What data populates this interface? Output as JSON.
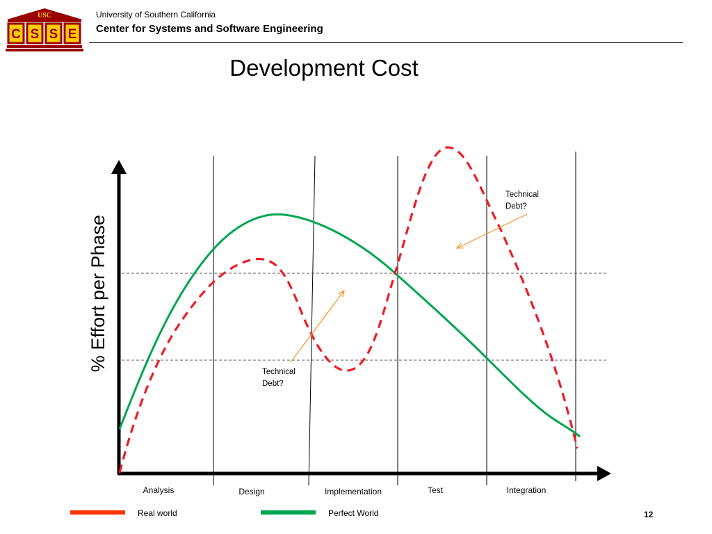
{
  "header": {
    "logo_top": "USC",
    "logo_letters": [
      "C",
      "S",
      "S",
      "E"
    ],
    "university": "University of Southern California",
    "center": "Center for Systems and Software Engineering"
  },
  "slide": {
    "title": "Development Cost",
    "y_axis_label": "% Effort per Phase",
    "page_number": "12"
  },
  "phases": [
    "Analysis",
    "Design",
    "Implementation",
    "Test",
    "Integration"
  ],
  "annotations": {
    "td_upper_line1": "Technical",
    "td_upper_line2": "Debt?",
    "td_lower_line1": "Technical",
    "td_lower_line2": "Debt?"
  },
  "legend": [
    {
      "label": "Real world",
      "color": "#ff3300"
    },
    {
      "label": "Perfect World",
      "color": "#00a550"
    }
  ],
  "colors": {
    "real_world_curve": "#ee1c25",
    "perfect_world_curve": "#00a550",
    "arrow": "#f7941d",
    "logo_red": "#990000",
    "logo_gold": "#ffcc00"
  }
}
